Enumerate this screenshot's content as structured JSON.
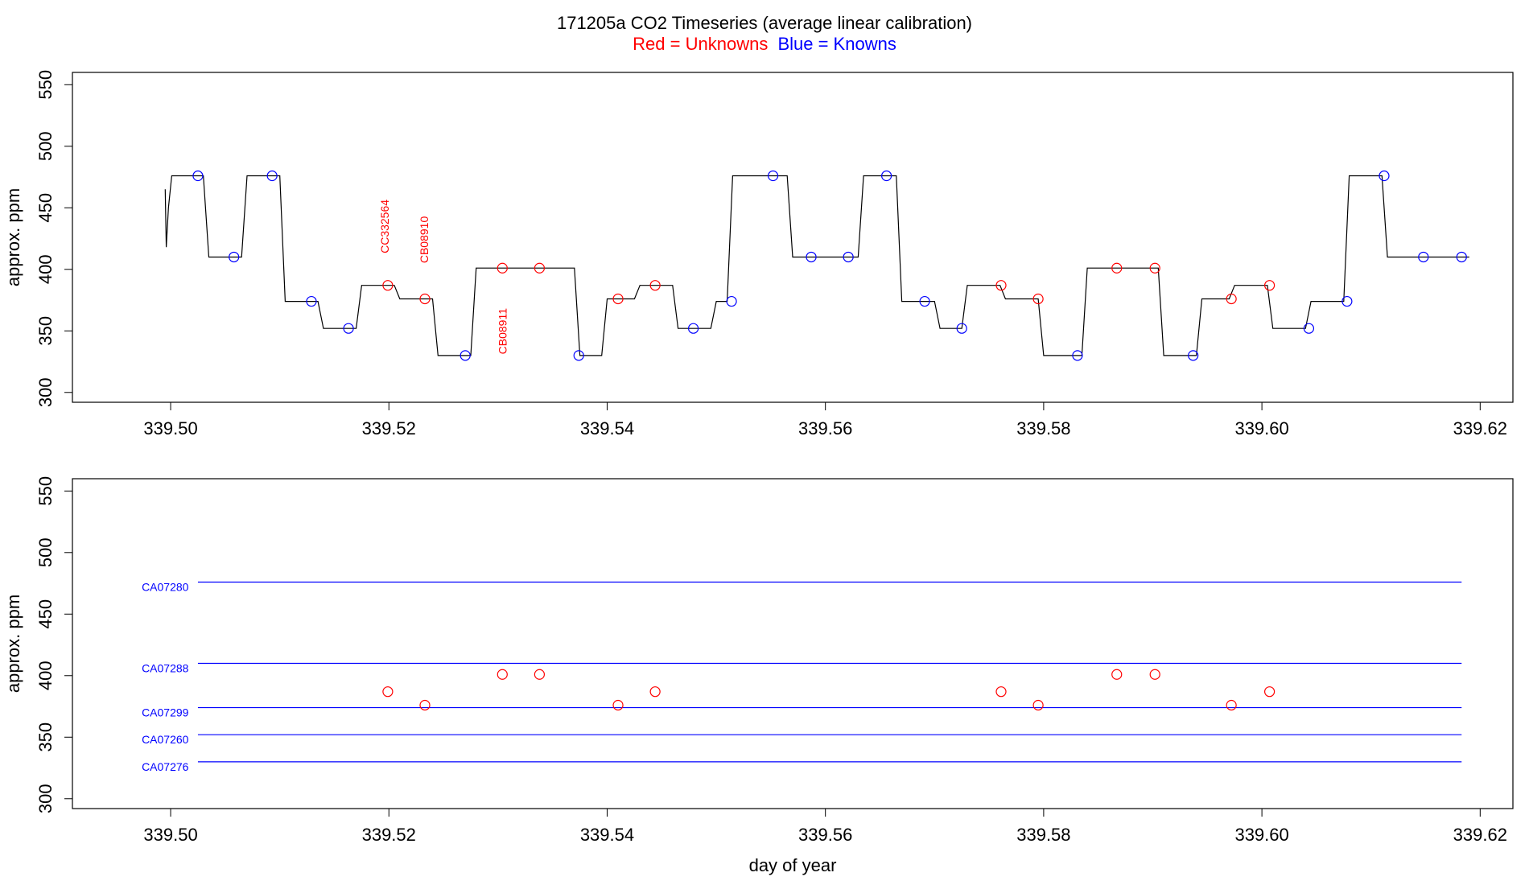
{
  "title": "171205a   CO2 Timeseries (average linear calibration)",
  "legend": {
    "red": "Red = Unknowns",
    "blue": "Blue = Knowns",
    "red_color": "#ff0000",
    "blue_color": "#0000ff"
  },
  "chart_data": [
    {
      "type": "line",
      "panel": "timeseries",
      "xlabel": "",
      "ylabel": "approx. ppm",
      "xlim": [
        339.491,
        339.623
      ],
      "ylim": [
        292,
        560
      ],
      "xticks": [
        "339.50",
        "339.52",
        "339.54",
        "339.56",
        "339.58",
        "339.60",
        "339.62"
      ],
      "yticks": [
        "300",
        "350",
        "400",
        "450",
        "500",
        "550"
      ],
      "grid": false,
      "trace_color": "#000000",
      "trace": [
        [
          339.4995,
          465
        ],
        [
          339.4996,
          418
        ],
        [
          339.4998,
          450
        ],
        [
          339.5001,
          476
        ],
        [
          339.503,
          476
        ],
        [
          339.5035,
          410
        ],
        [
          339.5065,
          410
        ],
        [
          339.507,
          476
        ],
        [
          339.51,
          476
        ],
        [
          339.5105,
          374
        ],
        [
          339.5135,
          374
        ],
        [
          339.514,
          352
        ],
        [
          339.517,
          352
        ],
        [
          339.5175,
          387
        ],
        [
          339.5205,
          387
        ],
        [
          339.521,
          376
        ],
        [
          339.524,
          376
        ],
        [
          339.5245,
          330
        ],
        [
          339.5275,
          330
        ],
        [
          339.528,
          401
        ],
        [
          339.537,
          401
        ],
        [
          339.5375,
          330
        ],
        [
          339.5395,
          330
        ],
        [
          339.54,
          376
        ],
        [
          339.5425,
          376
        ],
        [
          339.543,
          387
        ],
        [
          339.546,
          387
        ],
        [
          339.5465,
          352
        ],
        [
          339.5495,
          352
        ],
        [
          339.55,
          374
        ],
        [
          339.551,
          374
        ],
        [
          339.5515,
          476
        ],
        [
          339.5565,
          476
        ],
        [
          339.557,
          410
        ],
        [
          339.563,
          410
        ],
        [
          339.5635,
          476
        ],
        [
          339.5665,
          476
        ],
        [
          339.567,
          374
        ],
        [
          339.57,
          374
        ],
        [
          339.5705,
          352
        ],
        [
          339.5725,
          352
        ],
        [
          339.573,
          387
        ],
        [
          339.576,
          387
        ],
        [
          339.5765,
          376
        ],
        [
          339.5795,
          376
        ],
        [
          339.58,
          330
        ],
        [
          339.5835,
          330
        ],
        [
          339.584,
          401
        ],
        [
          339.5905,
          401
        ],
        [
          339.591,
          330
        ],
        [
          339.594,
          330
        ],
        [
          339.5945,
          376
        ],
        [
          339.597,
          376
        ],
        [
          339.5975,
          387
        ],
        [
          339.6005,
          387
        ],
        [
          339.601,
          352
        ],
        [
          339.604,
          352
        ],
        [
          339.6045,
          374
        ],
        [
          339.6075,
          374
        ],
        [
          339.608,
          476
        ],
        [
          339.611,
          476
        ],
        [
          339.6115,
          410
        ],
        [
          339.619,
          410
        ]
      ],
      "knowns": [
        [
          339.5025,
          476
        ],
        [
          339.5058,
          410
        ],
        [
          339.5093,
          476
        ],
        [
          339.5129,
          374
        ],
        [
          339.5163,
          352
        ],
        [
          339.527,
          330
        ],
        [
          339.5374,
          330
        ],
        [
          339.5479,
          352
        ],
        [
          339.5514,
          374
        ],
        [
          339.5552,
          476
        ],
        [
          339.5587,
          410
        ],
        [
          339.5621,
          410
        ],
        [
          339.5656,
          476
        ],
        [
          339.5691,
          374
        ],
        [
          339.5725,
          352
        ],
        [
          339.5831,
          330
        ],
        [
          339.5937,
          330
        ],
        [
          339.6043,
          352
        ],
        [
          339.6078,
          374
        ],
        [
          339.6112,
          476
        ],
        [
          339.6148,
          410
        ],
        [
          339.6183,
          410
        ]
      ],
      "unknowns": [
        [
          339.5199,
          387
        ],
        [
          339.5233,
          376
        ],
        [
          339.5304,
          401
        ],
        [
          339.5338,
          401
        ],
        [
          339.541,
          376
        ],
        [
          339.5444,
          387
        ],
        [
          339.5761,
          387
        ],
        [
          339.5795,
          376
        ],
        [
          339.5867,
          401
        ],
        [
          339.5902,
          401
        ],
        [
          339.5972,
          376
        ],
        [
          339.6007,
          387
        ]
      ],
      "annotations": [
        {
          "text": "CC332564",
          "x": 339.52,
          "y": 413
        },
        {
          "text": "CB08910",
          "x": 339.5236,
          "y": 405
        },
        {
          "text": "CB08911",
          "x": 339.5308,
          "y": 331
        }
      ]
    },
    {
      "type": "line",
      "panel": "calibration",
      "xlabel": "day of year",
      "ylabel": "approx. ppm",
      "xlim": [
        339.491,
        339.623
      ],
      "ylim": [
        292,
        560
      ],
      "xticks": [
        "339.50",
        "339.52",
        "339.54",
        "339.56",
        "339.58",
        "339.60",
        "339.62"
      ],
      "yticks": [
        "300",
        "350",
        "400",
        "450",
        "500",
        "550"
      ],
      "grid": false,
      "line_start": 339.5025,
      "line_end": 339.6183,
      "label_x": 339.4995,
      "standards": [
        {
          "name": "CA07280",
          "value": 476
        },
        {
          "name": "CA07288",
          "value": 410
        },
        {
          "name": "CA07299",
          "value": 374
        },
        {
          "name": "CA07260",
          "value": 352
        },
        {
          "name": "CA07276",
          "value": 330
        }
      ],
      "unknowns": [
        [
          339.5199,
          387
        ],
        [
          339.5233,
          376
        ],
        [
          339.5304,
          401
        ],
        [
          339.5338,
          401
        ],
        [
          339.541,
          376
        ],
        [
          339.5444,
          387
        ],
        [
          339.5761,
          387
        ],
        [
          339.5795,
          376
        ],
        [
          339.5867,
          401
        ],
        [
          339.5902,
          401
        ],
        [
          339.5972,
          376
        ],
        [
          339.6007,
          387
        ]
      ]
    }
  ]
}
